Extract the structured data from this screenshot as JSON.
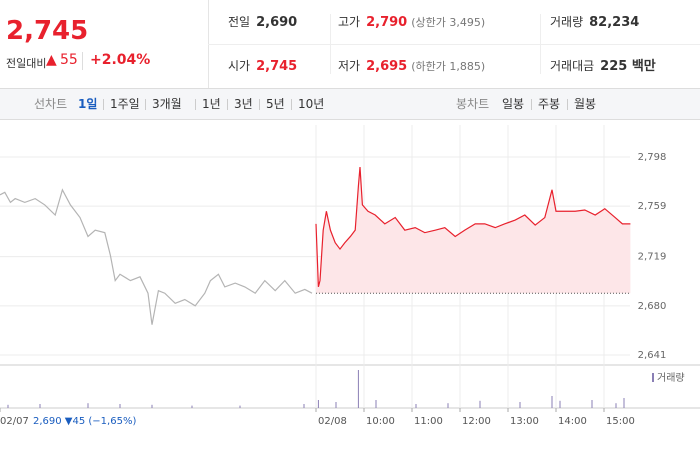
{
  "header": {
    "price": "2,745",
    "change_label": "전일대비",
    "change": "55",
    "change_pct": "+2.04%",
    "stats": [
      {
        "label": "전일",
        "value": "2,690"
      },
      {
        "label": "고가",
        "value": "2,790",
        "note": "(상한가 3,495)"
      },
      {
        "label": "거래량",
        "value": "82,234"
      },
      {
        "label": "시가",
        "value": "2,745"
      },
      {
        "label": "저가",
        "value": "2,695",
        "note": "(하한가 1,885)"
      },
      {
        "label": "거래대금",
        "value": "225 백만"
      }
    ]
  },
  "nav": {
    "line_label": "선차트",
    "line_periods": [
      "1일",
      "1주일",
      "3개월",
      "1년",
      "3년",
      "5년",
      "10년"
    ],
    "active_index": 0,
    "candle_label": "봉차트",
    "candle_periods": [
      "일봉",
      "주봉",
      "월봉"
    ]
  },
  "chart_data": {
    "type": "line",
    "series": [
      {
        "color": "#b4b4b4",
        "x": [
          0,
          6,
          13,
          19,
          31,
          44,
          56,
          69,
          78,
          88,
          100,
          110,
          119,
          131,
          138,
          144,
          150,
          163,
          175,
          185,
          190,
          198,
          206,
          219,
          231,
          244,
          256,
          263,
          273,
          281,
          294,
          306,
          319,
          331,
          344,
          356,
          369,
          381,
          390
        ],
        "values": [
          2768,
          2770,
          2762,
          2765,
          2762,
          2765,
          2760,
          2752,
          2772,
          2760,
          2750,
          2735,
          2740,
          2738,
          2720,
          2700,
          2705,
          2700,
          2703,
          2690,
          2665,
          2692,
          2690,
          2682,
          2685,
          2680,
          2690,
          2700,
          2705,
          2695,
          2698,
          2695,
          2690,
          2700,
          2692,
          2700,
          2690,
          2693,
          2690
        ]
      },
      {
        "color": "#e8212d",
        "fill": "#fde6e8",
        "x": [
          395,
          398,
          400,
          404,
          408,
          413,
          419,
          425,
          431,
          438,
          444,
          448,
          450,
          453,
          460,
          469,
          481,
          494,
          506,
          519,
          531,
          544,
          556,
          569,
          581,
          594,
          606,
          619,
          631,
          644,
          656,
          669,
          681,
          690,
          695,
          706,
          719,
          731,
          744,
          756,
          769,
          778,
          788
        ],
        "values": [
          2745,
          2695,
          2700,
          2740,
          2755,
          2740,
          2730,
          2725,
          2730,
          2735,
          2740,
          2775,
          2790,
          2760,
          2755,
          2752,
          2745,
          2750,
          2740,
          2742,
          2738,
          2740,
          2742,
          2735,
          2740,
          2745,
          2745,
          2742,
          2745,
          2748,
          2752,
          2744,
          2750,
          2772,
          2755,
          2755,
          2755,
          2756,
          2752,
          2757,
          2750,
          2745,
          2745
        ]
      }
    ],
    "prev_close": 2690,
    "xlim": [
      0,
      800
    ],
    "xticks": [
      {
        "value": 0,
        "label": "02/07"
      },
      {
        "value": 395,
        "label": "02/08"
      },
      {
        "value": 455,
        "label": "10:00"
      },
      {
        "value": 515,
        "label": "11:00"
      },
      {
        "value": 575,
        "label": "12:00"
      },
      {
        "value": 635,
        "label": "13:00"
      },
      {
        "value": 695,
        "label": "14:00"
      },
      {
        "value": 755,
        "label": "15:00"
      }
    ],
    "ylim": [
      2641,
      2798
    ],
    "yticks": [
      {
        "value": 2641,
        "label": "2,641"
      },
      {
        "value": 2680,
        "label": "2,680"
      },
      {
        "value": 2719,
        "label": "2,719"
      },
      {
        "value": 2759,
        "label": "2,759"
      },
      {
        "value": 2798,
        "label": "2,798"
      }
    ],
    "grid": true,
    "volume": {
      "label": "거래량",
      "color": "#8a7fb5",
      "ylim": [
        0,
        100
      ],
      "x": [
        10,
        50,
        110,
        150,
        190,
        240,
        300,
        380,
        398,
        420,
        448,
        470,
        520,
        560,
        600,
        650,
        690,
        700,
        740,
        770,
        780
      ],
      "values": [
        8,
        10,
        12,
        10,
        8,
        6,
        6,
        10,
        20,
        15,
        95,
        20,
        10,
        12,
        18,
        15,
        30,
        18,
        20,
        12,
        25
      ]
    },
    "info": "2,690 ▼45 (−1,65%)"
  }
}
